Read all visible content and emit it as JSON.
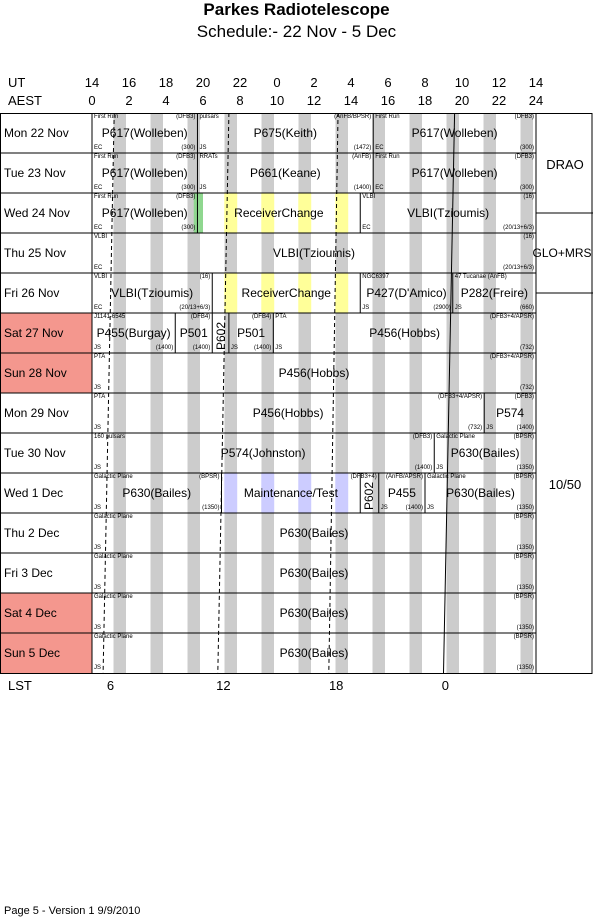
{
  "title": "Parkes Radiotelescope",
  "subtitle": "Schedule:- 22 Nov - 5  Dec",
  "axis": {
    "ut_label": "UT",
    "aest_label": "AEST",
    "lst_label": "LST",
    "ut_ticks": [
      "14",
      "16",
      "18",
      "20",
      "22",
      "0",
      "2",
      "4",
      "6",
      "8",
      "10",
      "12",
      "14"
    ],
    "aest_ticks": [
      "0",
      "2",
      "4",
      "6",
      "8",
      "10",
      "12",
      "14",
      "16",
      "18",
      "20",
      "22",
      "24"
    ],
    "lst_ticks": [
      "6",
      "12",
      "18",
      "0"
    ]
  },
  "days": [
    {
      "label": "Mon  22 Nov",
      "weekend": false
    },
    {
      "label": "Tue  23 Nov",
      "weekend": false
    },
    {
      "label": "Wed  24 Nov",
      "weekend": false
    },
    {
      "label": "Thu  25 Nov",
      "weekend": false
    },
    {
      "label": "Fri   26 Nov",
      "weekend": false
    },
    {
      "label": "Sat  27 Nov",
      "weekend": true
    },
    {
      "label": "Sun  28 Nov",
      "weekend": true
    },
    {
      "label": "Mon  29 Nov",
      "weekend": false
    },
    {
      "label": "Tue  30 Nov",
      "weekend": false
    },
    {
      "label": "Wed  1  Dec",
      "weekend": false
    },
    {
      "label": "Thu   2  Dec",
      "weekend": false
    },
    {
      "label": "Fri    3  Dec",
      "weekend": false
    },
    {
      "label": "Sat   4  Dec",
      "weekend": true
    },
    {
      "label": "Sun   5  Dec",
      "weekend": true
    }
  ],
  "side_labels": [
    "DRAO",
    "GLO+MRS",
    "10/50"
  ],
  "colors": {
    "weekend": "#f4978e",
    "stripe": "#cccccc",
    "green": "#8fd78f",
    "yellow": "#ffff99",
    "blue": "#ccccff"
  },
  "rows": [
    [
      {
        "s": 0,
        "e": 5.7,
        "main": "P617(Wolleben)",
        "tl": "First Run",
        "tr": "(DFB3)",
        "bl": "EC",
        "br": "(300)"
      },
      {
        "s": 5.7,
        "e": 15.2,
        "main": "P675(Keith)",
        "tl": "pulsars",
        "tr": "(AnFB/BPSR)",
        "bl": "JS",
        "br": "(1472)"
      },
      {
        "s": 15.2,
        "e": 24,
        "main": "P617(Wolleben)",
        "tl": "First Run",
        "tr": "(DFB3)",
        "bl": "EC",
        "br": "(300)"
      }
    ],
    [
      {
        "s": 0,
        "e": 5.7,
        "main": "P617(Wolleben)",
        "tl": "First Run",
        "tr": "(DFB3)",
        "bl": "EC",
        "br": "(300)"
      },
      {
        "s": 5.7,
        "e": 15.2,
        "main": "P661(Keane)",
        "tl": "RRATs",
        "tr": "(AnFB)",
        "bl": "JS",
        "br": "(1400)"
      },
      {
        "s": 15.2,
        "e": 24,
        "main": "P617(Wolleben)",
        "tl": "First Run",
        "tr": "(DFB3)",
        "bl": "EC",
        "br": "(300)"
      }
    ],
    [
      {
        "s": 0,
        "e": 5.7,
        "main": "P617(Wolleben)",
        "tl": "First Run",
        "tr": "(DFB3)",
        "bl": "EC",
        "br": "(300)"
      },
      {
        "s": 5.7,
        "e": 14.5,
        "main": "ReceiverChange",
        "tl": "",
        "tr": "",
        "bl": "",
        "br": ""
      },
      {
        "s": 14.5,
        "e": 24,
        "main": "VLBI(Tzioumis)",
        "tl": "VLBI",
        "tr": "(16)",
        "bl": "EC",
        "br": "(20/13+6/3)"
      }
    ],
    [
      {
        "s": 0,
        "e": 24,
        "main": "VLBI(Tzioumis)",
        "tl": "VLBI",
        "tr": "(16)",
        "bl": "EC",
        "br": "(20/13+6/3)"
      }
    ],
    [
      {
        "s": 0,
        "e": 6.5,
        "main": "VLBI(Tzioumis)",
        "tl": "VLBI",
        "tr": "(16)",
        "bl": "EC",
        "br": "(20/13+6/3)"
      },
      {
        "s": 6.5,
        "e": 14.5,
        "main": "ReceiverChange",
        "tl": "",
        "tr": "",
        "bl": "",
        "br": ""
      },
      {
        "s": 14.5,
        "e": 19.5,
        "main": "P427(D'Amico)",
        "tl": "NGC6397",
        "tr": "",
        "bl": "JS",
        "br": "(2900)"
      },
      {
        "s": 19.5,
        "e": 24,
        "main": "P282(Freire)",
        "tl": "47 Tucanae (AnFB)",
        "tr": "",
        "bl": "JS",
        "br": "(660)"
      }
    ],
    [
      {
        "s": 0,
        "e": 4.5,
        "main": "P455(Burgay)",
        "tl": "J1141-6545",
        "tr": "",
        "bl": "JS",
        "br": "(1400)"
      },
      {
        "s": 4.5,
        "e": 6.5,
        "main": "P501",
        "tl": "",
        "tr": "(DFB4)",
        "bl": "",
        "br": "(1400)"
      },
      {
        "s": 6.5,
        "e": 7.4,
        "main": "P602",
        "tl": "",
        "tr": "",
        "bl": "",
        "br": ""
      },
      {
        "s": 7.4,
        "e": 9.8,
        "main": "P501",
        "tl": "",
        "tr": "(DFB4)",
        "bl": "JS",
        "br": "(1400)"
      },
      {
        "s": 9.8,
        "e": 24,
        "main": "P456(Hobbs)",
        "tl": "PTA",
        "tr": "(DFB3+4/APSR)",
        "bl": "JS",
        "br": "(732)"
      }
    ],
    [
      {
        "s": 0,
        "e": 24,
        "main": "P456(Hobbs)",
        "tl": "PTA",
        "tr": "(DFB3+4/APSR)",
        "bl": "JS",
        "br": "(732)"
      }
    ],
    [
      {
        "s": 0,
        "e": 21.2,
        "main": "P456(Hobbs)",
        "tl": "PTA",
        "tr": "(DFB3+4/APSR)",
        "bl": "JS",
        "br": "(732)"
      },
      {
        "s": 21.2,
        "e": 24,
        "main": "P574",
        "tl": "",
        "tr": "(DFB3)",
        "bl": "JS",
        "br": "(1400)"
      }
    ],
    [
      {
        "s": 0,
        "e": 18.5,
        "main": "P574(Johnston)",
        "tl": "160 pulsars",
        "tr": "(DFB3)",
        "bl": "JS",
        "br": "(1400)"
      },
      {
        "s": 18.5,
        "e": 24,
        "main": "P630(Bailes)",
        "tl": "Galactic Plane",
        "tr": "(BPSR)",
        "bl": "JS",
        "br": "(1350)"
      }
    ],
    [
      {
        "s": 0,
        "e": 7,
        "main": "P630(Bailes)",
        "tl": "Galactic Plane",
        "tr": "(BPSR)",
        "bl": "JS",
        "br": "(1350)"
      },
      {
        "s": 7,
        "e": 14.5,
        "main": "Maintenance/Test",
        "tl": "",
        "tr": "",
        "bl": "",
        "br": ""
      },
      {
        "s": 14.5,
        "e": 15.5,
        "main": "P602",
        "tl": "",
        "tr": "(DFB3+4)",
        "bl": "",
        "br": ""
      },
      {
        "s": 15.5,
        "e": 18,
        "main": "P455",
        "tl": "",
        "tr": "(AnFB/APSR)",
        "bl": "JS",
        "br": "(1400)"
      },
      {
        "s": 18,
        "e": 24,
        "main": "P630(Bailes)",
        "tl": "Galactic Plane",
        "tr": "(BPSR)",
        "bl": "JS",
        "br": "(1350)"
      }
    ],
    [
      {
        "s": 0,
        "e": 24,
        "main": "P630(Bailes)",
        "tl": "Galactic Plane",
        "tr": "(BPSR)",
        "bl": "JS",
        "br": "(1350)"
      }
    ],
    [
      {
        "s": 0,
        "e": 24,
        "main": "P630(Bailes)",
        "tl": "Galactic Plane",
        "tr": "(BPSR)",
        "bl": "JS",
        "br": "(1350)"
      }
    ],
    [
      {
        "s": 0,
        "e": 24,
        "main": "P630(Bailes)",
        "tl": "Galactic Plane",
        "tr": "(BPSR)",
        "bl": "JS",
        "br": "(1350)"
      }
    ],
    [
      {
        "s": 0,
        "e": 24,
        "main": "P630(Bailes)",
        "tl": "Galactic Plane",
        "tr": "(BPSR)",
        "bl": "JS",
        "br": "(1350)"
      }
    ]
  ],
  "footer": "Page 5 - Version 1  9/9/2010"
}
